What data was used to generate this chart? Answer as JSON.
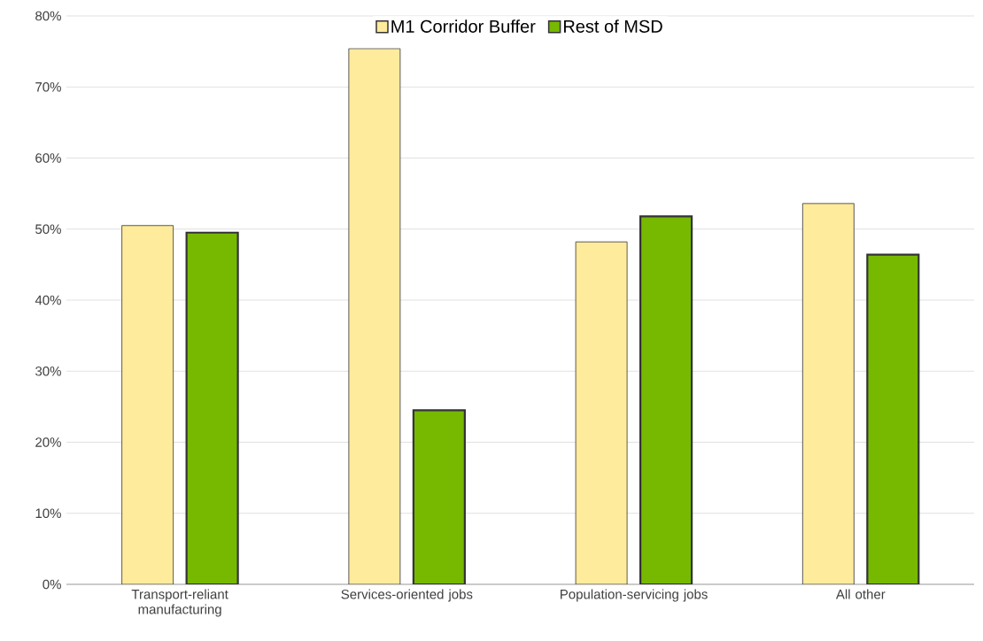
{
  "chart_data": {
    "type": "bar",
    "categories": [
      "Transport-reliant manufacturing",
      "Services-oriented jobs",
      "Population-servicing jobs",
      "All other"
    ],
    "series": [
      {
        "name": "M1 Corridor Buffer",
        "color": "#ffeb9c",
        "values": [
          50.5,
          75.4,
          48.2,
          53.6
        ]
      },
      {
        "name": "Rest of MSD",
        "color": "#76b900",
        "values": [
          49.5,
          24.5,
          51.8,
          46.4
        ]
      }
    ],
    "ylim": [
      0,
      80
    ],
    "yticks": [
      {
        "value": 0,
        "label": "0%"
      },
      {
        "value": 10,
        "label": "10%"
      },
      {
        "value": 20,
        "label": "20%"
      },
      {
        "value": 30,
        "label": "30%"
      },
      {
        "value": 40,
        "label": "40%"
      },
      {
        "value": 50,
        "label": "50%"
      },
      {
        "value": 60,
        "label": "60%"
      },
      {
        "value": 70,
        "label": "70%"
      },
      {
        "value": 80,
        "label": "80%"
      }
    ],
    "grid": "y",
    "legend": "top"
  }
}
